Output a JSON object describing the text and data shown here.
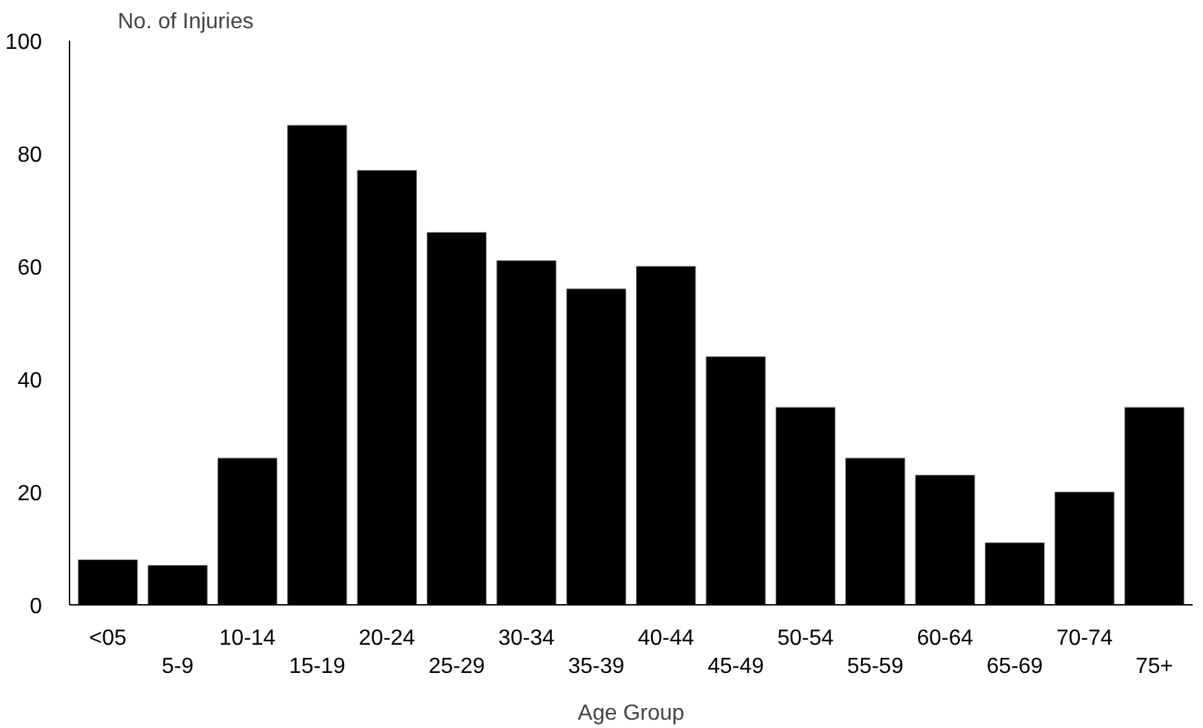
{
  "chart_data": {
    "type": "bar",
    "xlabel": "Age Group",
    "ylabel": "No. of Injuries",
    "categories": [
      "<05",
      "5-9",
      "10-14",
      "15-19",
      "20-24",
      "25-29",
      "30-34",
      "35-39",
      "40-44",
      "45-49",
      "50-54",
      "55-59",
      "60-64",
      "65-69",
      "70-74",
      "75+"
    ],
    "values": [
      8,
      7,
      26,
      85,
      77,
      66,
      61,
      56,
      60,
      44,
      35,
      26,
      23,
      11,
      20,
      35
    ],
    "color": "#000000",
    "ylim": [
      0,
      100
    ],
    "yticks": [
      0,
      20,
      40,
      60,
      80,
      100
    ],
    "grid": false
  }
}
